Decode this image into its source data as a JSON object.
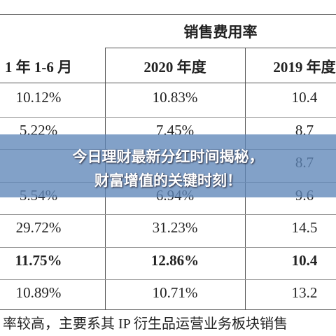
{
  "table": {
    "group_header": "销售费用率",
    "headers": [
      "1 年 1-6 月",
      "2020 年度",
      "2019 年度"
    ],
    "rows": [
      [
        "10.12%",
        "10.83%",
        "10.4"
      ],
      [
        "5.22%",
        "7.45%",
        "8.7"
      ],
      [
        null,
        null,
        "8.7"
      ],
      [
        "5.54%",
        "6.94%",
        "9.6"
      ],
      [
        "29.72%",
        "31.23%",
        "14.5"
      ],
      [
        "11.75%",
        "12.86%",
        "10.4"
      ],
      [
        "10.89%",
        "10.71%",
        "13.2"
      ]
    ],
    "bold_row": 5
  },
  "banner": {
    "lines": [
      "今日理财最新分红时间揭秘，",
      "财富增值的关键时刻！"
    ]
  },
  "footer_text": "率较高，主要系其 IP 衍生品运营业务板块销售"
}
